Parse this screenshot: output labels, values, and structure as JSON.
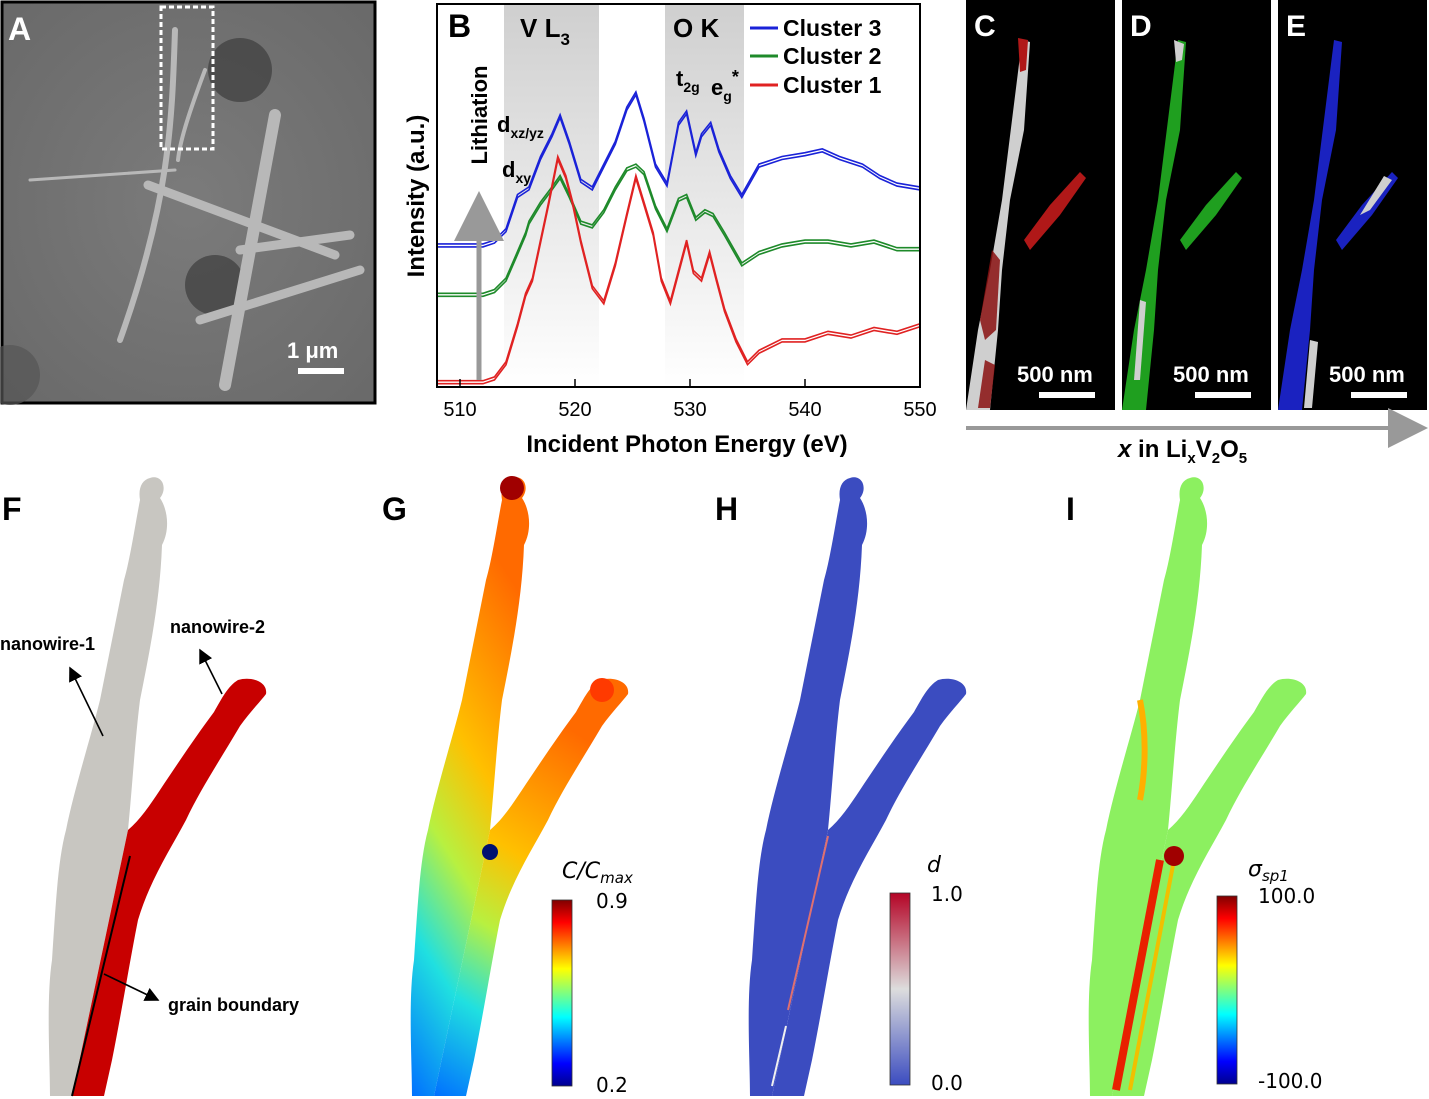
{
  "panels": {
    "A": {
      "label": "A",
      "scalebar": "1 μm"
    },
    "B": {
      "label": "B",
      "region_v": "V L",
      "region_v_sub": "3",
      "region_o": "O K",
      "arrow_label": "Lithiation",
      "peak_labels": [
        {
          "main": "d",
          "sub": "xz/yz"
        },
        {
          "main": "d",
          "sub": "xy"
        },
        {
          "main": "t",
          "sub": "2g"
        },
        {
          "main": "e",
          "sub": "g",
          "sup": "*"
        }
      ]
    },
    "C": {
      "label": "C",
      "scalebar": "500 nm",
      "color": "#b01818"
    },
    "D": {
      "label": "D",
      "scalebar": "500 nm",
      "color": "#1f9f1f"
    },
    "E": {
      "label": "E",
      "scalebar": "500 nm",
      "color": "#1a22c0"
    },
    "lithiation_axis": {
      "italic": "x",
      "text": " in Li",
      "sub_x": "x",
      "v": "V",
      "sub_2": "2",
      "o": "O",
      "sub_5": "5"
    },
    "F": {
      "label": "F",
      "nanowire1": "nanowire-1",
      "nanowire2": "nanowire-2",
      "boundary": "grain boundary",
      "nw1_color": "#c8c6c1",
      "nw2_color": "#c80000"
    },
    "G": {
      "label": "G",
      "cbar_title": "C/C",
      "cbar_title_sub": "max",
      "cbar_max": "0.9",
      "cbar_min": "0.2"
    },
    "H": {
      "label": "H",
      "cbar_title": "d",
      "cbar_max": "1.0",
      "cbar_min": "0.0"
    },
    "I": {
      "label": "I",
      "cbar_title": "σ",
      "cbar_title_sub": "sp1",
      "cbar_max": "100.0",
      "cbar_min": "-100.0"
    }
  },
  "chart_data": {
    "type": "line",
    "title": "",
    "xlabel": "Incident Photon Energy (eV)",
    "ylabel": "Intensity (a.u.)",
    "xlim": [
      508,
      550
    ],
    "xticks": [
      510,
      520,
      530,
      540,
      550
    ],
    "shaded_ranges": [
      [
        513.5,
        522
      ],
      [
        527.5,
        534.5
      ]
    ],
    "series": [
      {
        "name": "Cluster 3",
        "color": "#1a22d8",
        "x": [
          508,
          512,
          513,
          514,
          515,
          516,
          517,
          518,
          518.7,
          519.5,
          520.5,
          521.5,
          522.5,
          523.5,
          524.5,
          525.3,
          526,
          527,
          528,
          529,
          529.7,
          530.5,
          531,
          531.8,
          532.5,
          533.5,
          534.5,
          536,
          538,
          540,
          541.5,
          543,
          545,
          546.5,
          548,
          550
        ],
        "y": [
          0.37,
          0.37,
          0.38,
          0.41,
          0.5,
          0.52,
          0.6,
          0.66,
          0.71,
          0.64,
          0.54,
          0.52,
          0.58,
          0.64,
          0.73,
          0.77,
          0.7,
          0.58,
          0.53,
          0.69,
          0.72,
          0.61,
          0.66,
          0.69,
          0.62,
          0.55,
          0.5,
          0.58,
          0.6,
          0.61,
          0.62,
          0.6,
          0.58,
          0.55,
          0.53,
          0.52
        ]
      },
      {
        "name": "Cluster 2",
        "color": "#1e8a2a",
        "x": [
          508,
          512,
          513,
          514,
          515,
          515.7,
          516,
          517,
          518,
          518.7,
          519.5,
          520.5,
          521.5,
          522.5,
          523.5,
          524.5,
          525.3,
          526,
          527,
          528,
          529,
          529.7,
          530.5,
          531.3,
          532,
          533,
          534.5,
          536,
          538,
          540,
          542,
          544,
          546,
          548,
          550
        ],
        "y": [
          0.24,
          0.24,
          0.25,
          0.28,
          0.35,
          0.4,
          0.43,
          0.48,
          0.52,
          0.55,
          0.5,
          0.43,
          0.42,
          0.46,
          0.52,
          0.57,
          0.58,
          0.56,
          0.47,
          0.41,
          0.49,
          0.5,
          0.44,
          0.46,
          0.45,
          0.4,
          0.32,
          0.35,
          0.37,
          0.38,
          0.38,
          0.37,
          0.38,
          0.36,
          0.36
        ]
      },
      {
        "name": "Cluster 1",
        "color": "#e02222",
        "x": [
          508,
          510,
          512,
          513,
          514,
          515,
          515.7,
          516.3,
          517,
          517.7,
          518.5,
          519.2,
          519.8,
          520.5,
          521.5,
          522.5,
          523.5,
          524.5,
          525.3,
          526,
          526.8,
          527.5,
          528.3,
          529,
          529.7,
          530.3,
          531,
          531.7,
          532.3,
          533,
          534,
          535,
          536,
          538,
          540,
          542,
          544,
          546,
          548,
          550
        ],
        "y": [
          0.01,
          0.01,
          0.01,
          0.02,
          0.06,
          0.16,
          0.24,
          0.28,
          0.38,
          0.48,
          0.6,
          0.55,
          0.48,
          0.38,
          0.26,
          0.22,
          0.32,
          0.45,
          0.55,
          0.48,
          0.4,
          0.28,
          0.22,
          0.3,
          0.38,
          0.3,
          0.28,
          0.35,
          0.28,
          0.2,
          0.12,
          0.06,
          0.09,
          0.12,
          0.12,
          0.14,
          0.13,
          0.15,
          0.14,
          0.16
        ]
      }
    ]
  }
}
